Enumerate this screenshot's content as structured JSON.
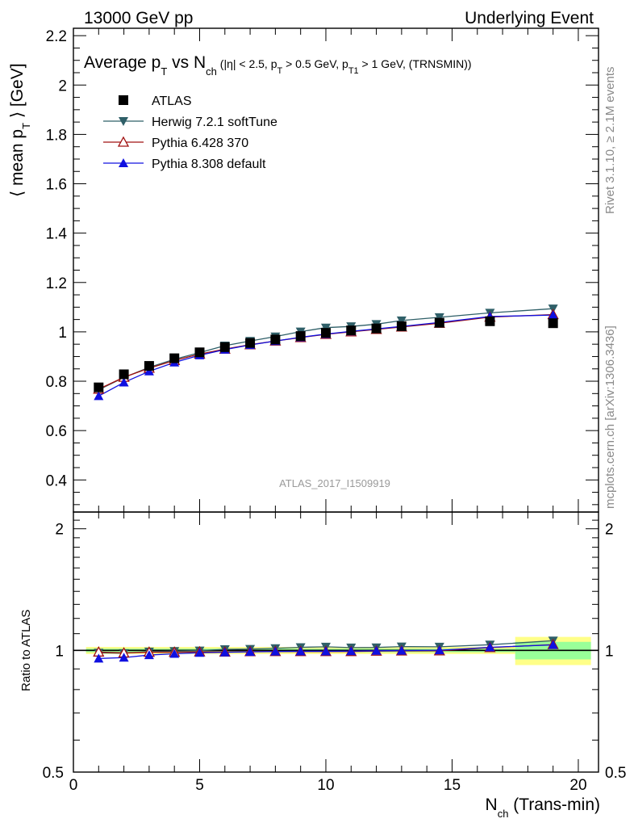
{
  "header": {
    "energy": "13000 GeV pp",
    "process": "Underlying Event"
  },
  "side_labels": {
    "rivet": "Rivet 3.1.10, ≥ 2.1M events",
    "mcplots": "mcplots.cern.ch [arXiv:1306.3436]"
  },
  "watermark": "ATLAS_2017_I1509919",
  "colors": {
    "atlas": "#000000",
    "herwig": "#2f5f68",
    "pythia6": "#a01010",
    "pythia8": "#1010e0",
    "band_inner": "#99ff99",
    "band_outer": "#ffff88"
  },
  "chart_data": [
    {
      "type": "line",
      "title": "Average p_T vs N_ch (|η| < 2.5, p_T > 0.5 GeV, p_T1 > 1 GeV, (TRNSMIN))",
      "ylabel": "⟨ mean p_T ⟩ [GeV]",
      "xlabel": "",
      "xlim": [
        0,
        20.8
      ],
      "ylim": [
        0.27,
        2.23
      ],
      "yticks": [
        0.4,
        0.6,
        0.8,
        1,
        1.2,
        1.4,
        1.6,
        1.8,
        2,
        2.2
      ],
      "ytick_labels": [
        "0.4",
        "0.6",
        "0.8",
        "1",
        "1.2",
        "1.4",
        "1.6",
        "1.8",
        "2",
        "2.2"
      ],
      "legend_position": "top-left",
      "x": [
        1,
        2,
        3,
        4,
        5,
        6,
        7,
        8,
        9,
        10,
        11,
        12,
        13,
        14.5,
        16.5,
        19
      ],
      "series": [
        {
          "name": "ATLAS",
          "marker": "square",
          "values": [
            0.775,
            0.828,
            0.862,
            0.893,
            0.917,
            0.938,
            0.955,
            0.969,
            0.983,
            0.996,
            1.006,
            1.014,
            1.023,
            1.037,
            1.043,
            1.035
          ]
        },
        {
          "name": "Herwig 7.2.1 softTune",
          "marker": "triangle-down",
          "values": [
            0.765,
            0.815,
            0.856,
            0.889,
            0.916,
            0.944,
            0.963,
            0.981,
            1.001,
            1.017,
            1.022,
            1.031,
            1.046,
            1.059,
            1.077,
            1.094
          ]
        },
        {
          "name": "Pythia 6.428 370",
          "marker": "triangle-up-open",
          "values": [
            0.768,
            0.816,
            0.853,
            0.884,
            0.91,
            0.93,
            0.948,
            0.963,
            0.977,
            0.99,
            1.0,
            1.01,
            1.02,
            1.035,
            1.06,
            1.07
          ]
        },
        {
          "name": "Pythia 8.308 default",
          "marker": "triangle-up",
          "values": [
            0.74,
            0.795,
            0.84,
            0.876,
            0.905,
            0.928,
            0.947,
            0.963,
            0.978,
            0.991,
            1.002,
            1.012,
            1.022,
            1.038,
            1.062,
            1.068
          ]
        }
      ]
    },
    {
      "type": "line",
      "title": "",
      "ylabel": "Ratio to ATLAS",
      "xlabel": "N_ch (Trans-min)",
      "xlim": [
        0,
        20.8
      ],
      "ylim": [
        0.5,
        2.2
      ],
      "yscale": "log",
      "yticks": [
        0.5,
        1,
        2
      ],
      "ytick_labels": [
        "0.5",
        "1",
        "2"
      ],
      "xticks": [
        0,
        5,
        10,
        15,
        20
      ],
      "xtick_labels": [
        "0",
        "5",
        "10",
        "15",
        "20"
      ],
      "bands": [
        {
          "x0": 0.5,
          "x1": 17.5,
          "inner": 0.01,
          "outer": 0.02
        },
        {
          "x0": 17.5,
          "x1": 20.5,
          "inner": 0.05,
          "outer": 0.08
        }
      ],
      "x": [
        1,
        2,
        3,
        4,
        5,
        6,
        7,
        8,
        9,
        10,
        11,
        12,
        13,
        14.5,
        16.5,
        19
      ],
      "series": [
        {
          "name": "Herwig 7.2.1 softTune",
          "marker": "triangle-down",
          "values": [
            0.987,
            0.984,
            0.993,
            0.996,
            0.999,
            1.006,
            1.008,
            1.012,
            1.018,
            1.021,
            1.016,
            1.017,
            1.022,
            1.021,
            1.033,
            1.057
          ]
        },
        {
          "name": "Pythia 6.428 370",
          "marker": "triangle-up-open",
          "values": [
            0.991,
            0.986,
            0.99,
            0.99,
            0.992,
            0.991,
            0.993,
            0.994,
            0.994,
            0.994,
            0.994,
            0.996,
            0.997,
            0.998,
            1.016,
            1.034
          ]
        },
        {
          "name": "Pythia 8.308 default",
          "marker": "triangle-up",
          "values": [
            0.955,
            0.96,
            0.974,
            0.981,
            0.987,
            0.989,
            0.992,
            0.994,
            0.995,
            0.995,
            0.996,
            0.998,
            0.999,
            1.001,
            1.018,
            1.032
          ]
        }
      ]
    }
  ]
}
